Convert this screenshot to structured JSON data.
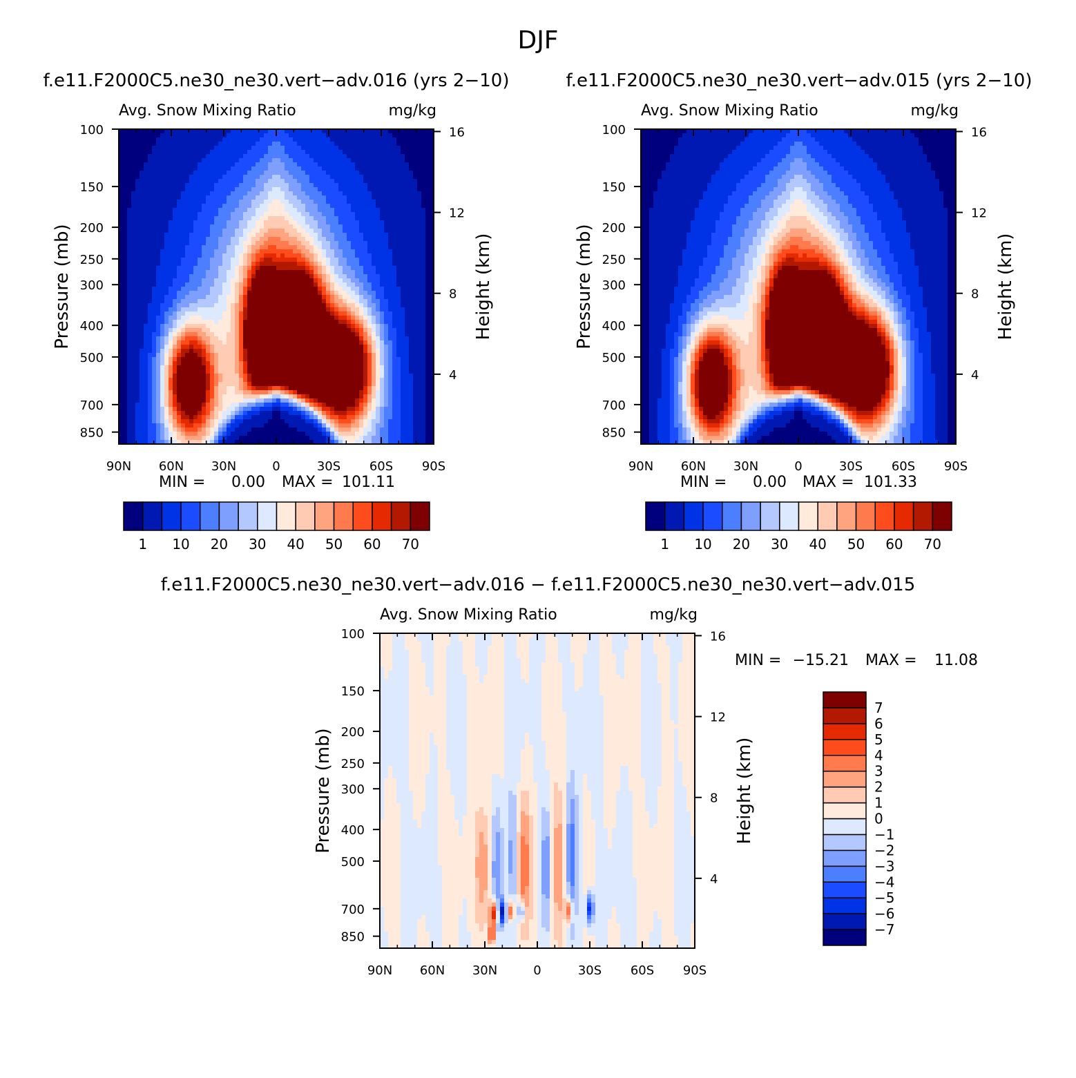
{
  "figure": {
    "title": "DJF"
  },
  "colors": {
    "panel_colors": [
      "#00007f",
      "#0019b2",
      "#0033e5",
      "#1c4cff",
      "#4c7fff",
      "#7f9fff",
      "#b2c8ff",
      "#dde9ff",
      "#ffeadb",
      "#ffcbb2",
      "#ffa47f",
      "#ff7a4c",
      "#ff4c1c",
      "#e52900",
      "#b21900",
      "#7f0000"
    ],
    "diff_colors": [
      "#00007f",
      "#0019b2",
      "#0033e5",
      "#1c4cff",
      "#4c7fff",
      "#7f9fff",
      "#b2c8ff",
      "#dde9ff",
      "#ffeadb",
      "#ffcbb2",
      "#ffa47f",
      "#ff7a4c",
      "#ff4c1c",
      "#e52900",
      "#b21900",
      "#7f0000"
    ]
  },
  "chart_data": [
    {
      "type": "heatmap",
      "title": "f.e11.F2000C5.ne30_ne30.vert−adv.016 (yrs 2−10)",
      "left_subtitle": "Avg. Snow Mixing Ratio",
      "right_subtitle": "mg/kg",
      "ylabel": "Pressure (mb)",
      "y2label": "Height (km)",
      "x_ticks": [
        "90N",
        "60N",
        "30N",
        "0",
        "30S",
        "60S",
        "90S"
      ],
      "y_ticks": [
        100,
        150,
        200,
        250,
        300,
        400,
        500,
        700,
        850
      ],
      "y2_ticks": [
        4,
        8,
        12,
        16
      ],
      "min_text": "MIN =",
      "min_value": "0.00",
      "max_text": "MAX =",
      "max_value": "101.11",
      "levels": [
        1,
        5,
        10,
        15,
        20,
        25,
        30,
        35,
        40,
        45,
        50,
        55,
        60,
        65,
        70
      ],
      "levels_labeled": [
        "1",
        "10",
        "20",
        "30",
        "40",
        "50",
        "60",
        "70"
      ],
      "centers": [
        {
          "lat": 52,
          "p": 590,
          "amp": 74,
          "sx": 11,
          "sp": 95
        },
        {
          "lat": -22,
          "p": 400,
          "amp": 72,
          "sx": 8,
          "sp": 110
        },
        {
          "lat": 0,
          "p": 800,
          "amp": 6,
          "sx": 1,
          "sp": 1
        }
      ]
    },
    {
      "type": "heatmap",
      "title": "f.e11.F2000C5.ne30_ne30.vert−adv.015 (yrs 2−10)",
      "left_subtitle": "Avg. Snow Mixing Ratio",
      "right_subtitle": "mg/kg",
      "ylabel": "Pressure (mb)",
      "y2label": "Height (km)",
      "x_ticks": [
        "90N",
        "60N",
        "30N",
        "0",
        "30S",
        "60S",
        "90S"
      ],
      "y_ticks": [
        100,
        150,
        200,
        250,
        300,
        400,
        500,
        700,
        850
      ],
      "y2_ticks": [
        4,
        8,
        12,
        16
      ],
      "min_text": "MIN =",
      "min_value": "0.00",
      "max_text": "MAX =",
      "max_value": "101.33",
      "levels": [
        1,
        5,
        10,
        15,
        20,
        25,
        30,
        35,
        40,
        45,
        50,
        55,
        60,
        65,
        70
      ],
      "levels_labeled": [
        "1",
        "10",
        "20",
        "30",
        "40",
        "50",
        "60",
        "70"
      ]
    },
    {
      "type": "heatmap",
      "title": "f.e11.F2000C5.ne30_ne30.vert−adv.016 − f.e11.F2000C5.ne30_ne30.vert−adv.015",
      "left_subtitle": "Avg. Snow Mixing Ratio",
      "right_subtitle": "mg/kg",
      "ylabel": "Pressure (mb)",
      "y2label": "Height (km)",
      "x_ticks": [
        "90N",
        "60N",
        "30N",
        "0",
        "30S",
        "60S",
        "90S"
      ],
      "y_ticks": [
        100,
        150,
        200,
        250,
        300,
        400,
        500,
        700,
        850
      ],
      "y2_ticks": [
        4,
        8,
        12,
        16
      ],
      "min_text": "MIN =",
      "min_value": "−15.21",
      "max_text": "MAX =",
      "max_value": "11.08",
      "levels": [
        -7,
        -6,
        -5,
        -4,
        -3,
        -2,
        -1,
        0,
        1,
        2,
        3,
        4,
        5,
        6,
        7
      ],
      "levels_labeled": [
        "−7",
        "−6",
        "−5",
        "−4",
        "−3",
        "−2",
        "−1",
        "0",
        "1",
        "2",
        "3",
        "4",
        "5",
        "6",
        "7"
      ]
    }
  ]
}
